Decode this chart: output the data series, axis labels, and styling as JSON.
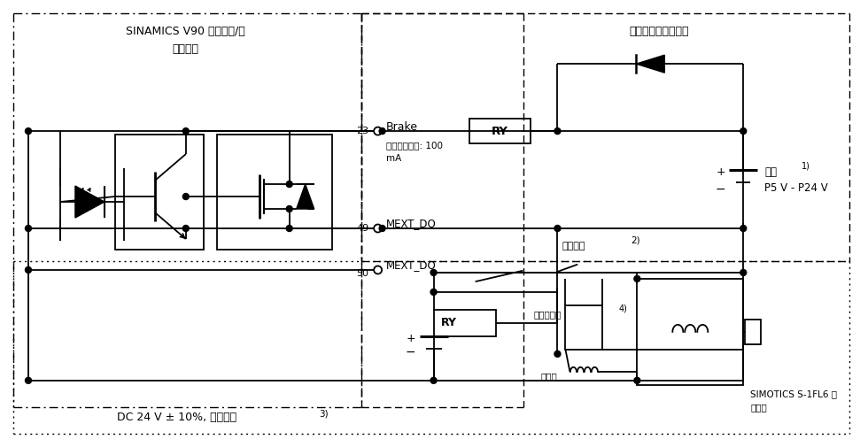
{
  "bg_color": "#ffffff",
  "line_color": "#000000",
  "fig_width": 9.71,
  "fig_height": 5.05,
  "dpi": 100,
  "texts": {
    "left_title1": "SINAMICS V90 上的控制/状",
    "left_title2": "态连接器",
    "right_title": "第三方设备推荐电路",
    "brake": "Brake",
    "pin23": "23",
    "pin49": "49",
    "pin50": "50",
    "mext_do": "MEXT_DO",
    "max_curr1": "最大输出电流: 100",
    "max_curr2": "mA",
    "ry": "RY",
    "power": "电源",
    "power_sup": "1)",
    "power_range": "P5 V - P24 V",
    "estop": "急停开关",
    "estop_sup": "2)",
    "surge": "浪涌吸收器",
    "surge_sup": "4)",
    "fuse": "熔断器",
    "motor1": "SIMOTICS S-1FL6 伺",
    "motor2": "服电机",
    "dc": "DC 24 V ± 10%, 抱闸电源",
    "dc_sup": "3)"
  }
}
